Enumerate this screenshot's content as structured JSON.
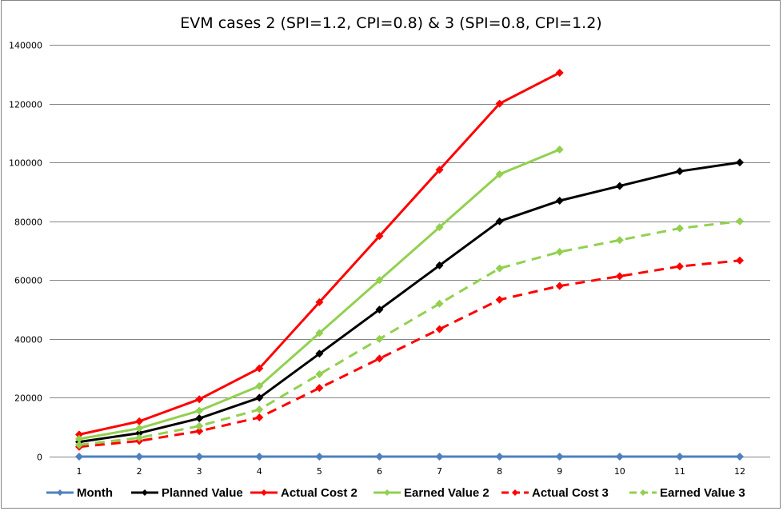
{
  "chart_data": {
    "type": "line",
    "title": "EVM cases 2 (SPI=1.2,  CPI=0.8) & 3 (SPI=0.8,  CPI=1.2)",
    "xlabel": "",
    "ylabel": "",
    "categories": [
      "1",
      "2",
      "3",
      "4",
      "5",
      "6",
      "7",
      "8",
      "9",
      "10",
      "11",
      "12"
    ],
    "ylim": [
      0,
      140000
    ],
    "yticks": [
      0,
      20000,
      40000,
      60000,
      80000,
      100000,
      120000,
      140000
    ],
    "ytick_labels": [
      "0",
      "20000",
      "40000",
      "60000",
      "80000",
      "100000",
      "120000",
      "140000"
    ],
    "grid": "horizontal",
    "legend_position": "bottom",
    "series": [
      {
        "name": "Month",
        "color": "#4F81BD",
        "dash": false,
        "values": [
          1,
          2,
          3,
          4,
          5,
          6,
          7,
          8,
          9,
          10,
          11,
          12
        ]
      },
      {
        "name": "Planned Value",
        "color": "#000000",
        "dash": false,
        "values": [
          5000,
          8000,
          13000,
          20000,
          35000,
          50000,
          65000,
          80000,
          87000,
          92000,
          97000,
          100000
        ]
      },
      {
        "name": "Actual Cost 2",
        "color": "#FF0000",
        "dash": false,
        "values": [
          7500,
          12000,
          19500,
          30000,
          52500,
          75000,
          97500,
          120000,
          130500,
          null,
          null,
          null
        ]
      },
      {
        "name": "Earned Value 2",
        "color": "#92D050",
        "dash": false,
        "values": [
          6000,
          9600,
          15600,
          24000,
          42000,
          60000,
          78000,
          96000,
          104400,
          null,
          null,
          null
        ]
      },
      {
        "name": "Actual Cost 3",
        "color": "#FF0000",
        "dash": true,
        "values": [
          3333,
          5333,
          8667,
          13333,
          23333,
          33333,
          43333,
          53333,
          58000,
          61333,
          64667,
          66667
        ]
      },
      {
        "name": "Earned Value 3",
        "color": "#92D050",
        "dash": true,
        "values": [
          4000,
          6400,
          10400,
          16000,
          28000,
          40000,
          52000,
          64000,
          69600,
          73600,
          77600,
          80000
        ]
      }
    ]
  }
}
